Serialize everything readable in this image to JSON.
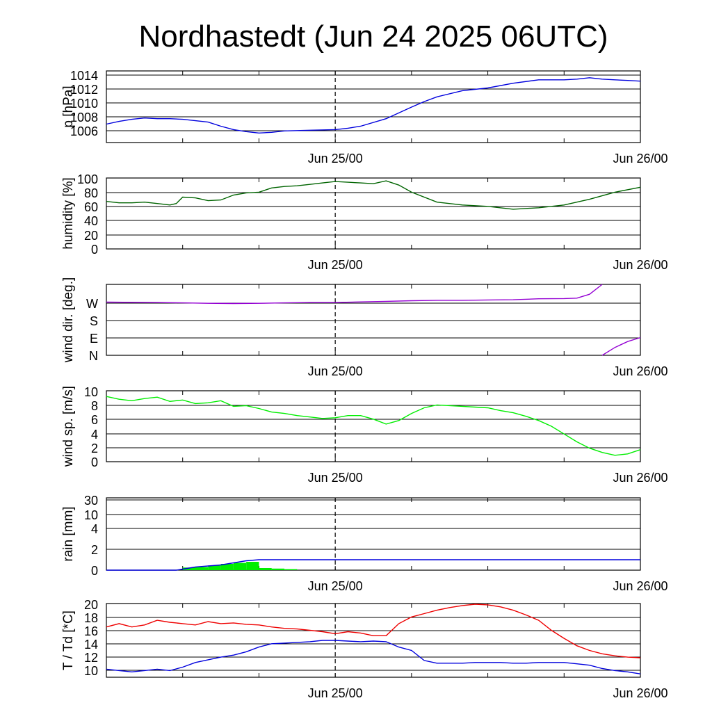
{
  "title": "Nordhastedt (Jun 24 2025 06UTC)",
  "x_ticks": [
    "Jun 25/00",
    "Jun 26/00"
  ],
  "x_range_hours": [
    0,
    42
  ],
  "colors": {
    "pressure": "#0000dd",
    "humidity": "#006400",
    "wind_dir": "#9400d3",
    "wind_speed": "#00ee00",
    "rain_total": "#0000dd",
    "rain_bars": "#00ee00",
    "temperature": "#ee0000",
    "dewpoint": "#0000dd"
  },
  "chart_data": [
    {
      "type": "line",
      "ylabel": "p [hPa]",
      "ylim": [
        1004,
        1014.5
      ],
      "yticks": [
        "1006",
        "1008",
        "1010",
        "1012",
        "1014"
      ],
      "series": [
        {
          "x": [
            0,
            1,
            2,
            3,
            4,
            5,
            6,
            8,
            9,
            10,
            11,
            12,
            13,
            14,
            16,
            18,
            19,
            20,
            22,
            24,
            25,
            26,
            28,
            30,
            32,
            34,
            36,
            37,
            38,
            39,
            40,
            41,
            42
          ],
          "values": [
            1006.7,
            1007.1,
            1007.4,
            1007.6,
            1007.5,
            1007.5,
            1007.4,
            1007.0,
            1006.4,
            1005.9,
            1005.6,
            1005.4,
            1005.5,
            1005.7,
            1005.8,
            1005.9,
            1006.1,
            1006.4,
            1007.5,
            1009.2,
            1010.0,
            1010.7,
            1011.6,
            1012.0,
            1012.7,
            1013.2,
            1013.2,
            1013.3,
            1013.5,
            1013.3,
            1013.2,
            1013.1,
            1013.0
          ]
        }
      ]
    },
    {
      "type": "line",
      "ylabel": "humidity [%]",
      "ylim": [
        0,
        100
      ],
      "yticks": [
        "0",
        "20",
        "40",
        "60",
        "80",
        "100"
      ],
      "series": [
        {
          "x": [
            0,
            1,
            2,
            3,
            4,
            5,
            5.5,
            6,
            7,
            8,
            9,
            10,
            11,
            12,
            13,
            14,
            15,
            16,
            17,
            18,
            19,
            20,
            21,
            22,
            23,
            24,
            26,
            28,
            30,
            32,
            34,
            36,
            38,
            40,
            42
          ],
          "values": [
            67,
            65,
            65,
            66,
            64,
            62,
            64,
            73,
            72,
            68,
            69,
            76,
            79,
            80,
            86,
            88,
            89,
            91,
            93,
            95,
            94,
            93,
            92,
            96,
            90,
            80,
            66,
            62,
            60,
            56,
            58,
            62,
            70,
            80,
            87
          ]
        }
      ]
    },
    {
      "type": "line",
      "ylabel": "wind dir. [deg.]",
      "ylim": [
        0,
        360
      ],
      "yticks": [
        "N",
        "E",
        "S",
        "W"
      ],
      "series": [
        {
          "x": [
            0,
            2,
            4,
            6,
            8,
            10,
            12,
            14,
            16,
            18,
            20,
            22,
            24,
            26,
            28,
            30,
            32,
            34,
            36,
            37,
            38,
            39
          ],
          "values": [
            270,
            269,
            268,
            266,
            264,
            263,
            264,
            266,
            268,
            268,
            271,
            274,
            277,
            279,
            279,
            281,
            282,
            287,
            288,
            290,
            310,
            360
          ]
        },
        {
          "x": [
            39,
            40,
            41,
            42
          ],
          "values": [
            0,
            40,
            70,
            90
          ]
        }
      ]
    },
    {
      "type": "line",
      "ylabel": "wind sp. [m/s]",
      "ylim": [
        0,
        10
      ],
      "yticks": [
        "0",
        "2",
        "4",
        "6",
        "8",
        "10"
      ],
      "series": [
        {
          "x": [
            0,
            1,
            2,
            3,
            4,
            5,
            6,
            7,
            8,
            9,
            10,
            11,
            12,
            13,
            14,
            15,
            16,
            17,
            18,
            19,
            20,
            21,
            22,
            23,
            24,
            25,
            26,
            27,
            28,
            29,
            30,
            31,
            32,
            33,
            34,
            35,
            36,
            37,
            38,
            39,
            40,
            41,
            42
          ],
          "values": [
            9.2,
            8.8,
            8.6,
            8.9,
            9.1,
            8.5,
            8.7,
            8.2,
            8.3,
            8.6,
            7.8,
            7.9,
            7.5,
            7.0,
            6.8,
            6.5,
            6.3,
            6.1,
            6.2,
            6.5,
            6.5,
            6.0,
            5.3,
            5.8,
            6.8,
            7.6,
            8.0,
            7.9,
            7.8,
            7.7,
            7.6,
            7.2,
            6.9,
            6.4,
            5.8,
            5.0,
            3.9,
            2.8,
            1.9,
            1.3,
            0.9,
            1.1,
            1.7
          ]
        }
      ]
    },
    {
      "type": "bar",
      "ylabel": "rain [mm]",
      "ylim": [
        0,
        30
      ],
      "yticks": [
        "0",
        "2",
        "4",
        "10",
        "30"
      ],
      "series": [
        {
          "x": [
            0,
            5.5,
            6,
            7,
            8,
            9,
            10,
            11,
            12,
            13,
            14,
            42
          ],
          "values": [
            0,
            0,
            0.1,
            0.3,
            0.4,
            0.5,
            0.7,
            0.9,
            1.0,
            1.0,
            1.0,
            1.0
          ]
        }
      ],
      "bars": [
        {
          "x": [
            7,
            8,
            9,
            10,
            11,
            12,
            13,
            14,
            15
          ],
          "values": [
            0.25,
            0.3,
            0.45,
            0.6,
            0.7,
            0.8,
            0.2,
            0.15,
            0.1
          ]
        }
      ]
    },
    {
      "type": "line",
      "ylabel": "T / Td [*C]",
      "ylim": [
        9,
        20
      ],
      "yticks": [
        "10",
        "12",
        "14",
        "16",
        "18",
        "20"
      ],
      "series": [
        {
          "x": [
            0,
            1,
            2,
            3,
            4,
            5,
            6,
            7,
            8,
            9,
            10,
            11,
            12,
            13,
            14,
            15,
            16,
            17,
            18,
            19,
            20,
            21,
            22,
            23,
            24,
            25,
            26,
            27,
            28,
            29,
            30,
            31,
            32,
            33,
            34,
            35,
            36,
            37,
            38,
            39,
            40,
            41,
            42
          ],
          "values": [
            16.5,
            17.0,
            16.5,
            16.8,
            17.5,
            17.2,
            17.0,
            16.8,
            17.3,
            17.0,
            17.1,
            16.9,
            16.8,
            16.5,
            16.3,
            16.2,
            16.0,
            15.8,
            15.5,
            15.8,
            15.6,
            15.2,
            15.2,
            17.0,
            18.0,
            18.5,
            19.0,
            19.4,
            19.7,
            19.9,
            19.8,
            19.5,
            19.0,
            18.3,
            17.5,
            16.0,
            14.8,
            13.7,
            13.0,
            12.5,
            12.2,
            12.0,
            11.9
          ]
        },
        {
          "x": [
            0,
            1,
            2,
            3,
            4,
            5,
            6,
            7,
            8,
            9,
            10,
            11,
            12,
            13,
            14,
            15,
            16,
            17,
            18,
            19,
            20,
            21,
            22,
            23,
            24,
            25,
            26,
            27,
            28,
            29,
            30,
            31,
            32,
            33,
            34,
            35,
            36,
            37,
            38,
            39,
            40,
            41,
            42
          ],
          "values": [
            10.2,
            10.0,
            9.8,
            10.0,
            10.2,
            10.0,
            10.5,
            11.2,
            11.6,
            12.0,
            12.3,
            12.8,
            13.5,
            14.0,
            14.1,
            14.2,
            14.3,
            14.5,
            14.5,
            14.4,
            14.3,
            14.4,
            14.3,
            13.5,
            13.0,
            11.5,
            11.1,
            11.1,
            11.1,
            11.2,
            11.2,
            11.2,
            11.1,
            11.1,
            11.2,
            11.2,
            11.2,
            11.0,
            10.8,
            10.3,
            10.0,
            9.8,
            9.5
          ]
        }
      ]
    }
  ]
}
